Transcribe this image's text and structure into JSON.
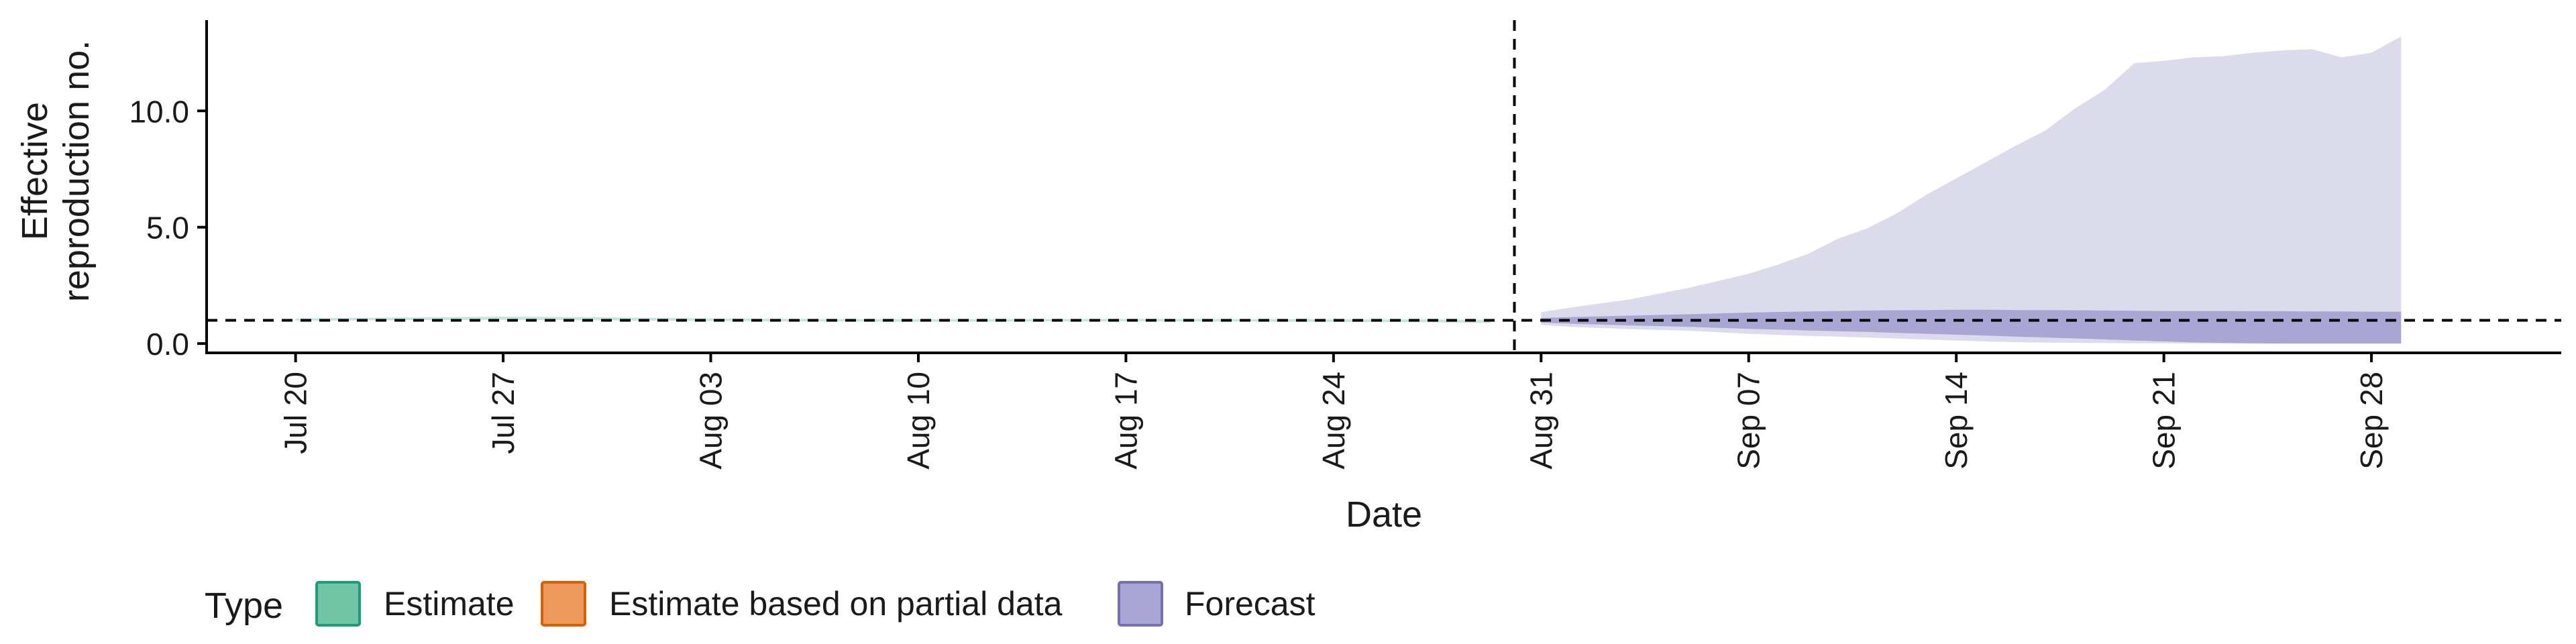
{
  "chart_data": {
    "type": "area",
    "title": "",
    "xlabel": "Date",
    "ylabel_lines": [
      "Effective",
      "reproduction no."
    ],
    "ylim": [
      -0.4,
      13.9
    ],
    "yticks": [
      0.0,
      5.0,
      10.0
    ],
    "ytick_labels": [
      "0.0",
      "5.0",
      "10.0"
    ],
    "x_start_day": -3.0,
    "x_end_day": 76.4,
    "x_ticks": [
      {
        "day": 0,
        "label": "Jul 20"
      },
      {
        "day": 7,
        "label": "Jul 27"
      },
      {
        "day": 14,
        "label": "Aug 03"
      },
      {
        "day": 21,
        "label": "Aug 10"
      },
      {
        "day": 28,
        "label": "Aug 17"
      },
      {
        "day": 35,
        "label": "Aug 24"
      },
      {
        "day": 42,
        "label": "Aug 31"
      },
      {
        "day": 49,
        "label": "Sep 07"
      },
      {
        "day": 56,
        "label": "Sep 14"
      },
      {
        "day": 63,
        "label": "Sep 21"
      },
      {
        "day": 70,
        "label": "Sep 28"
      }
    ],
    "reference_hline": 1.0,
    "reference_vline_day": 41.1,
    "series": [
      {
        "name": "Estimate",
        "days": [
          0,
          4,
          7,
          10,
          14,
          18,
          21,
          25,
          28,
          32,
          35,
          38,
          40.3
        ],
        "lower": [
          0.98,
          1.0,
          1.02,
          1.0,
          0.97,
          0.95,
          0.94,
          0.95,
          0.96,
          0.95,
          0.93,
          0.92,
          0.88
        ],
        "upper": [
          1.08,
          1.12,
          1.16,
          1.13,
          1.08,
          1.05,
          1.04,
          1.05,
          1.06,
          1.05,
          1.04,
          1.04,
          1.02
        ]
      },
      {
        "name": "Forecast",
        "days": [
          42,
          43,
          45,
          47,
          49,
          50,
          51,
          52,
          53,
          54,
          55,
          56,
          57,
          58,
          59,
          60,
          61,
          62,
          63,
          64,
          65,
          66,
          67,
          68,
          69,
          70,
          71
        ],
        "outer_lower": [
          0.8,
          0.72,
          0.62,
          0.55,
          0.42,
          0.37,
          0.33,
          0.3,
          0.26,
          0.21,
          0.17,
          0.13,
          0.09,
          0.06,
          0.04,
          0.03,
          0.02,
          0.01,
          0.01,
          0.0,
          0.0,
          0.0,
          0.0,
          0.0,
          0.0,
          0.0,
          0.0
        ],
        "outer_upper": [
          1.35,
          1.55,
          1.9,
          2.4,
          3.0,
          3.4,
          3.85,
          4.5,
          4.95,
          5.6,
          6.4,
          7.1,
          7.8,
          8.5,
          9.15,
          10.1,
          10.9,
          12.05,
          12.15,
          12.3,
          12.35,
          12.5,
          12.6,
          12.65,
          12.3,
          12.5,
          13.2
        ],
        "inner_lower": [
          0.9,
          0.85,
          0.78,
          0.72,
          0.63,
          0.6,
          0.56,
          0.53,
          0.5,
          0.46,
          0.42,
          0.38,
          0.34,
          0.3,
          0.26,
          0.22,
          0.18,
          0.13,
          0.09,
          0.05,
          0.03,
          0.01,
          0.0,
          0.0,
          0.0,
          0.0,
          0.0
        ],
        "inner_upper": [
          1.1,
          1.14,
          1.2,
          1.26,
          1.33,
          1.36,
          1.38,
          1.4,
          1.42,
          1.43,
          1.44,
          1.45,
          1.45,
          1.44,
          1.44,
          1.43,
          1.42,
          1.41,
          1.4,
          1.4,
          1.4,
          1.39,
          1.39,
          1.38,
          1.38,
          1.37,
          1.37
        ]
      }
    ],
    "legend": {
      "position": "bottom-left",
      "title": "Type",
      "entries": [
        {
          "label": "Estimate",
          "fill": "#71c5a7",
          "stroke": "#1b9e77"
        },
        {
          "label": "Estimate based on partial data",
          "fill": "#eb9a5b",
          "stroke": "#d95f02"
        },
        {
          "label": "Forecast",
          "fill": "#aaa6d3",
          "stroke": "#7570b3"
        }
      ]
    },
    "colors": {
      "estimate_band": "#c2e8d9",
      "estimate_line": "#1b9e77",
      "forecast_outer": "#dcdbec",
      "forecast_inner": "#aaa6d3",
      "axis": "#000000"
    }
  }
}
